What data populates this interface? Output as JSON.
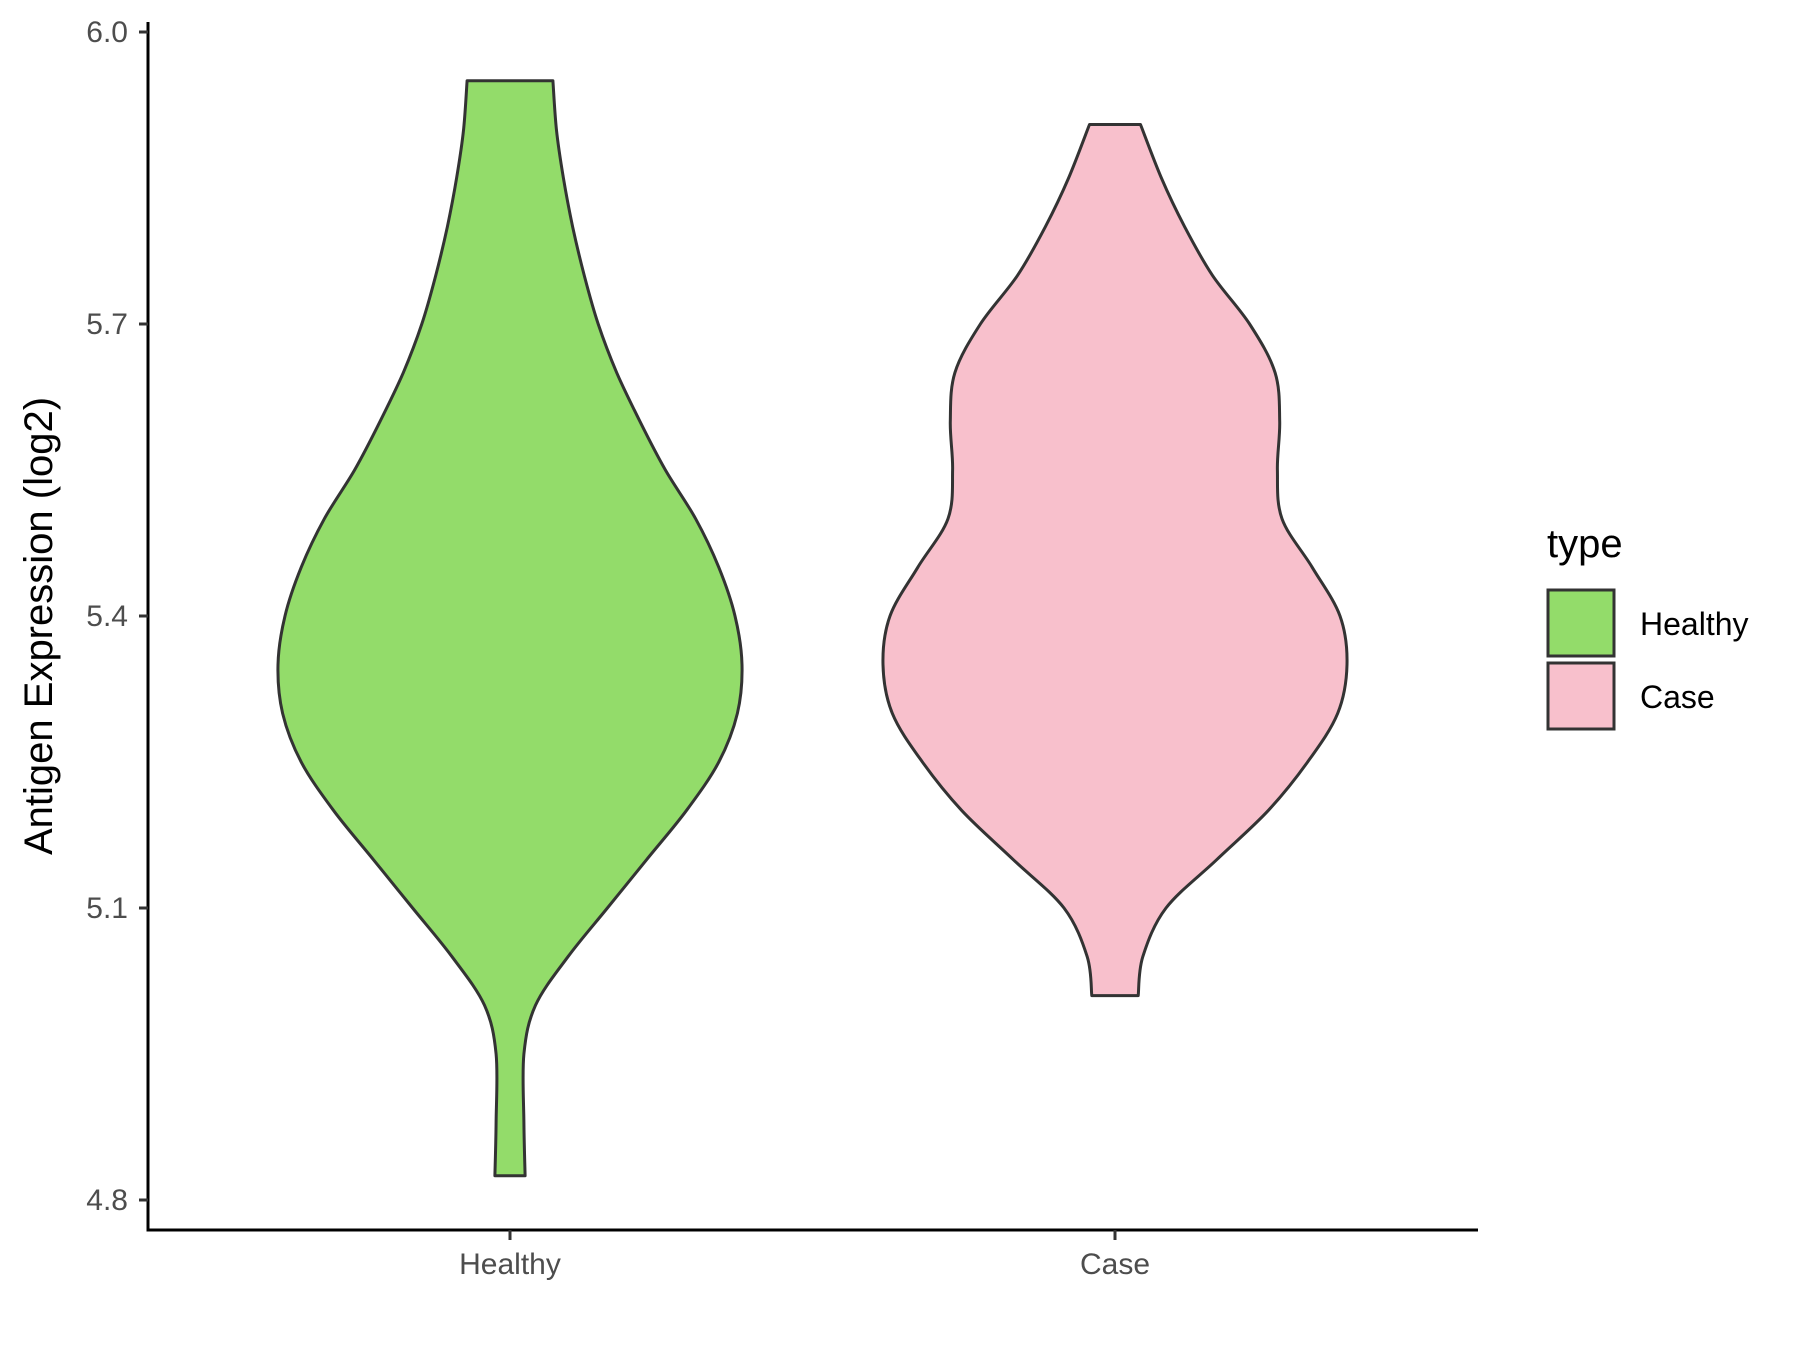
{
  "chart_data": {
    "type": "violin",
    "title": "",
    "xlabel": "",
    "ylabel": "Antigen Expression (log2)",
    "ylim": [
      4.77,
      6.02
    ],
    "yticks": [
      "4.8",
      "5.1",
      "5.4",
      "5.7",
      "6.0"
    ],
    "categories": [
      "Healthy",
      "Case"
    ],
    "grid": false,
    "legend": {
      "title": "type",
      "position": "right",
      "entries": [
        {
          "label": "Healthy",
          "color": "#93DC6A"
        },
        {
          "label": "Case",
          "color": "#F8C0CC"
        }
      ]
    },
    "series": [
      {
        "name": "Healthy",
        "color": "#93DC6A",
        "min": 4.825,
        "max": 5.95,
        "density_profile": [
          [
            4.825,
            0.065
          ],
          [
            4.88,
            0.06
          ],
          [
            4.95,
            0.06
          ],
          [
            5.0,
            0.11
          ],
          [
            5.05,
            0.25
          ],
          [
            5.1,
            0.42
          ],
          [
            5.15,
            0.59
          ],
          [
            5.2,
            0.76
          ],
          [
            5.25,
            0.9
          ],
          [
            5.3,
            0.98
          ],
          [
            5.35,
            1.0
          ],
          [
            5.4,
            0.97
          ],
          [
            5.45,
            0.9
          ],
          [
            5.5,
            0.8
          ],
          [
            5.55,
            0.67
          ],
          [
            5.6,
            0.56
          ],
          [
            5.65,
            0.46
          ],
          [
            5.7,
            0.38
          ],
          [
            5.75,
            0.32
          ],
          [
            5.8,
            0.27
          ],
          [
            5.85,
            0.23
          ],
          [
            5.9,
            0.2
          ],
          [
            5.95,
            0.185
          ]
        ]
      },
      {
        "name": "Case",
        "color": "#F8C0CC",
        "min": 5.01,
        "max": 5.905,
        "density_profile": [
          [
            5.01,
            0.1
          ],
          [
            5.05,
            0.12
          ],
          [
            5.1,
            0.22
          ],
          [
            5.15,
            0.44
          ],
          [
            5.2,
            0.66
          ],
          [
            5.25,
            0.83
          ],
          [
            5.3,
            0.96
          ],
          [
            5.35,
            1.0
          ],
          [
            5.4,
            0.97
          ],
          [
            5.45,
            0.85
          ],
          [
            5.5,
            0.72
          ],
          [
            5.55,
            0.7
          ],
          [
            5.6,
            0.71
          ],
          [
            5.65,
            0.69
          ],
          [
            5.7,
            0.58
          ],
          [
            5.75,
            0.42
          ],
          [
            5.8,
            0.3
          ],
          [
            5.85,
            0.2
          ],
          [
            5.905,
            0.11
          ]
        ]
      }
    ]
  }
}
